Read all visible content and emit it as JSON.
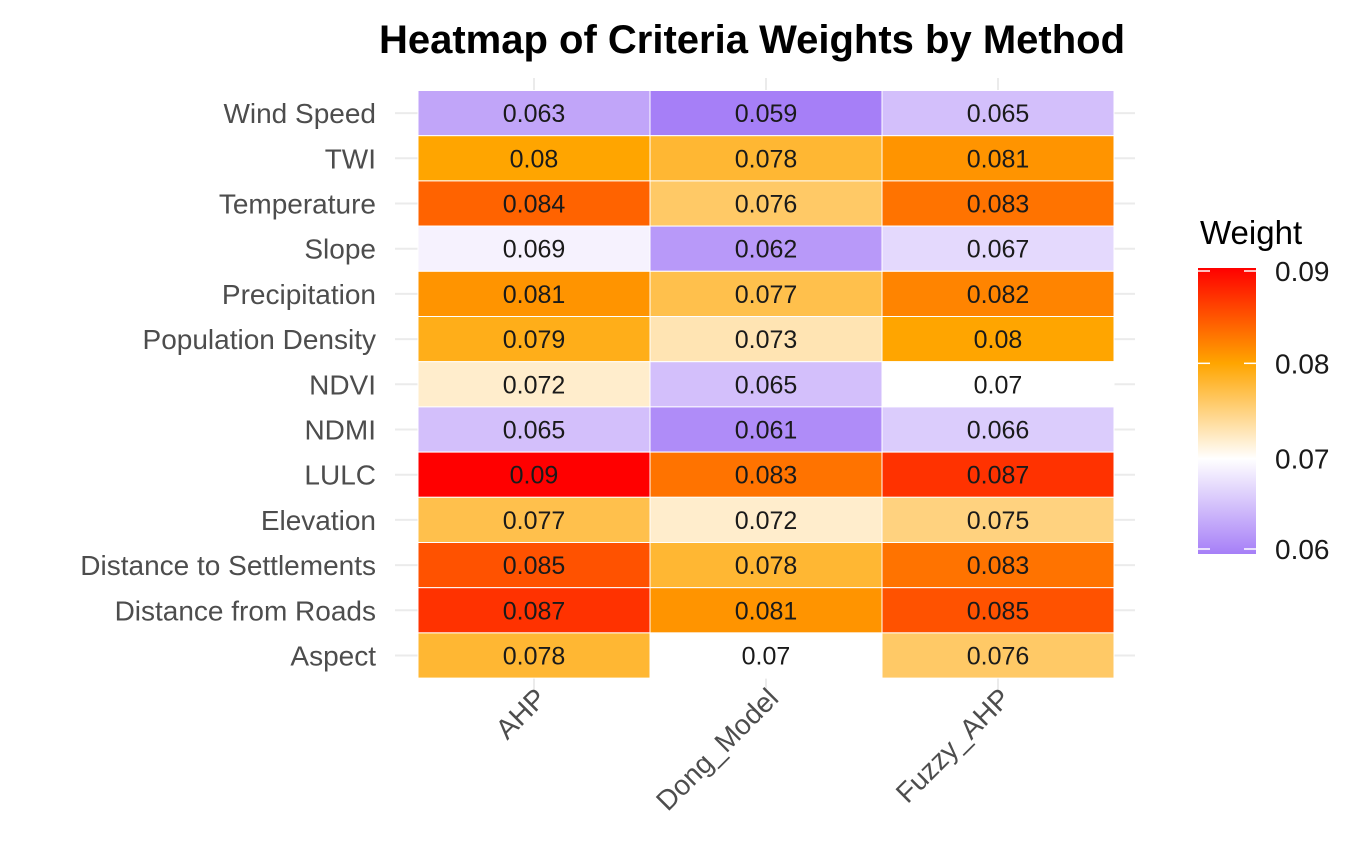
{
  "chart_data": {
    "type": "heatmap",
    "title": "Heatmap of Criteria Weights by Method",
    "xlabel": "",
    "ylabel": "",
    "x_categories": [
      "AHP",
      "Dong_Model",
      "Fuzzy_AHP"
    ],
    "y_categories": [
      "Wind Speed",
      "TWI",
      "Temperature",
      "Slope",
      "Precipitation",
      "Population Density",
      "NDVI",
      "NDMI",
      "LULC",
      "Elevation",
      "Distance to Settlements",
      "Distance from Roads",
      "Aspect"
    ],
    "values": [
      [
        "0.063",
        "0.059",
        "0.065"
      ],
      [
        "0.08",
        "0.078",
        "0.081"
      ],
      [
        "0.084",
        "0.076",
        "0.083"
      ],
      [
        "0.069",
        "0.062",
        "0.067"
      ],
      [
        "0.081",
        "0.077",
        "0.082"
      ],
      [
        "0.079",
        "0.073",
        "0.08"
      ],
      [
        "0.072",
        "0.065",
        "0.07"
      ],
      [
        "0.065",
        "0.061",
        "0.066"
      ],
      [
        "0.09",
        "0.083",
        "0.087"
      ],
      [
        "0.077",
        "0.072",
        "0.075"
      ],
      [
        "0.085",
        "0.078",
        "0.083"
      ],
      [
        "0.087",
        "0.081",
        "0.085"
      ],
      [
        "0.078",
        "0.07",
        "0.076"
      ]
    ],
    "legend": {
      "title": "Weight",
      "position": "right",
      "ticks": [
        "0.09",
        "0.08",
        "0.07",
        "0.06"
      ],
      "range": [
        0.06,
        0.09
      ],
      "colors": {
        "low": "#a67ff7",
        "mid_low": "#ffffff",
        "mid": "#ffa500",
        "high": "#ff0000"
      }
    }
  }
}
